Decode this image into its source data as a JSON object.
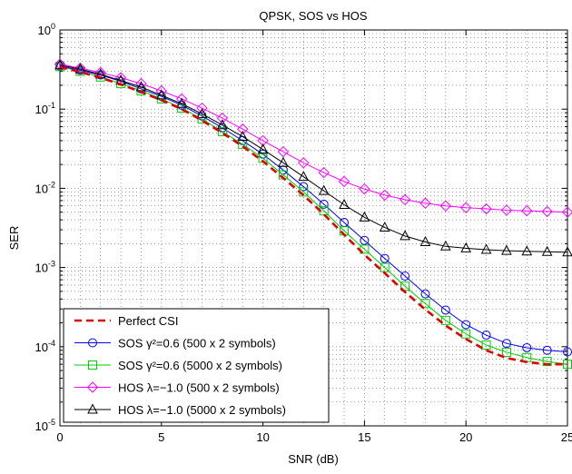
{
  "chart_data": {
    "type": "line",
    "title": "QPSK, SOS vs HOS",
    "xlabel": "SNR (dB)",
    "ylabel": "SER",
    "xlim": [
      0,
      25
    ],
    "ylim": [
      1e-05,
      1
    ],
    "yscale": "log",
    "grid": true,
    "legend_position": "bottom-left",
    "x": [
      0,
      1,
      2,
      3,
      4,
      5,
      6,
      7,
      8,
      9,
      10,
      11,
      12,
      13,
      14,
      15,
      16,
      17,
      18,
      19,
      20,
      21,
      22,
      23,
      24,
      25
    ],
    "x_ticks": [
      {
        "value": 0,
        "label": "0"
      },
      {
        "value": 5,
        "label": "5"
      },
      {
        "value": 10,
        "label": "10"
      },
      {
        "value": 15,
        "label": "15"
      },
      {
        "value": 20,
        "label": "20"
      },
      {
        "value": 25,
        "label": "25"
      }
    ],
    "y_ticks": [
      {
        "value": 1,
        "base": "10",
        "exp": "0"
      },
      {
        "value": 0.1,
        "base": "10",
        "exp": "-1"
      },
      {
        "value": 0.01,
        "base": "10",
        "exp": "-2"
      },
      {
        "value": 0.001,
        "base": "10",
        "exp": "-3"
      },
      {
        "value": 0.0001,
        "base": "10",
        "exp": "-4"
      },
      {
        "value": 1e-05,
        "base": "10",
        "exp": "-5"
      }
    ],
    "series": [
      {
        "name": "Perfect CSI",
        "color": "#e00000",
        "dash": "dashed",
        "marker": "none",
        "values": [
          0.34,
          0.295,
          0.25,
          0.205,
          0.165,
          0.13,
          0.1,
          0.072,
          0.05,
          0.034,
          0.022,
          0.0135,
          0.0082,
          0.0047,
          0.0026,
          0.00145,
          0.00085,
          0.00049,
          0.000295,
          0.000185,
          0.000125,
          9e-05,
          7.2e-05,
          6.4e-05,
          6e-05,
          6e-05
        ]
      },
      {
        "name": "SOS γ²=0.6 (500 x 2 symbols)",
        "color": "#0000ff",
        "dash": "solid",
        "marker": "circle",
        "values": [
          0.35,
          0.31,
          0.27,
          0.225,
          0.18,
          0.145,
          0.112,
          0.082,
          0.058,
          0.04,
          0.027,
          0.017,
          0.0105,
          0.0063,
          0.0037,
          0.0022,
          0.0013,
          0.00078,
          0.000465,
          0.00029,
          0.00019,
          0.00014,
          0.00011,
          9.7e-05,
          9e-05,
          8.6e-05
        ]
      },
      {
        "name": "SOS γ²=0.6 (5000 x 2 symbols)",
        "color": "#00cc00",
        "dash": "solid",
        "marker": "square",
        "values": [
          0.345,
          0.3,
          0.255,
          0.21,
          0.17,
          0.135,
          0.103,
          0.075,
          0.052,
          0.036,
          0.024,
          0.0148,
          0.009,
          0.0052,
          0.0029,
          0.0017,
          0.001,
          0.00058,
          0.00035,
          0.000215,
          0.000145,
          0.000105,
          8.5e-05,
          7.3e-05,
          6.5e-05,
          6e-05
        ]
      },
      {
        "name": "HOS λ=−1.0 (500 x 2 symbols)",
        "color": "#ff00ff",
        "dash": "solid",
        "marker": "diamond",
        "values": [
          0.37,
          0.33,
          0.29,
          0.25,
          0.21,
          0.17,
          0.135,
          0.103,
          0.077,
          0.056,
          0.04,
          0.029,
          0.021,
          0.0158,
          0.0122,
          0.0098,
          0.0082,
          0.0072,
          0.0065,
          0.006,
          0.0057,
          0.0055,
          0.0053,
          0.0052,
          0.0051,
          0.005
        ]
      },
      {
        "name": "HOS λ=−1.0 (5000 x 2 symbols)",
        "color": "#000000",
        "dash": "solid",
        "marker": "triangle",
        "values": [
          0.36,
          0.32,
          0.275,
          0.23,
          0.19,
          0.15,
          0.117,
          0.087,
          0.063,
          0.045,
          0.031,
          0.021,
          0.014,
          0.0093,
          0.0062,
          0.0043,
          0.0032,
          0.0025,
          0.0021,
          0.00185,
          0.00175,
          0.00168,
          0.00163,
          0.0016,
          0.00158,
          0.00156
        ]
      }
    ]
  }
}
